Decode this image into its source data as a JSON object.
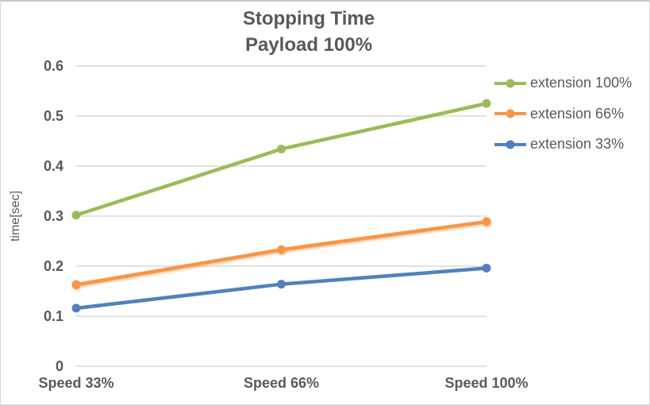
{
  "chart_data": {
    "type": "line",
    "title": "Stopping Time",
    "subtitle": "Payload 100%",
    "ylabel": "time[sec]",
    "xlabel": "",
    "categories": [
      "Speed 33%",
      "Speed 66%",
      "Speed 100%"
    ],
    "series": [
      {
        "name": "extension 100%",
        "color": "#9BBB59",
        "values": [
          0.302,
          0.434,
          0.525
        ]
      },
      {
        "name": "extension 66%",
        "color": "#F79646",
        "values": [
          0.163,
          0.233,
          0.289
        ]
      },
      {
        "name": "extension 33%",
        "color": "#4F81BD",
        "values": [
          0.116,
          0.164,
          0.196
        ]
      }
    ],
    "ylim": [
      0,
      0.6
    ],
    "ytick_step": 0.1,
    "yticks": [
      "0",
      "0.1",
      "0.2",
      "0.3",
      "0.4",
      "0.5",
      "0.6"
    ],
    "grid": "horizontal",
    "legend_position": "right",
    "marker": "circle",
    "text_color": "#595959",
    "gridline_color": "#D9D9D9"
  }
}
